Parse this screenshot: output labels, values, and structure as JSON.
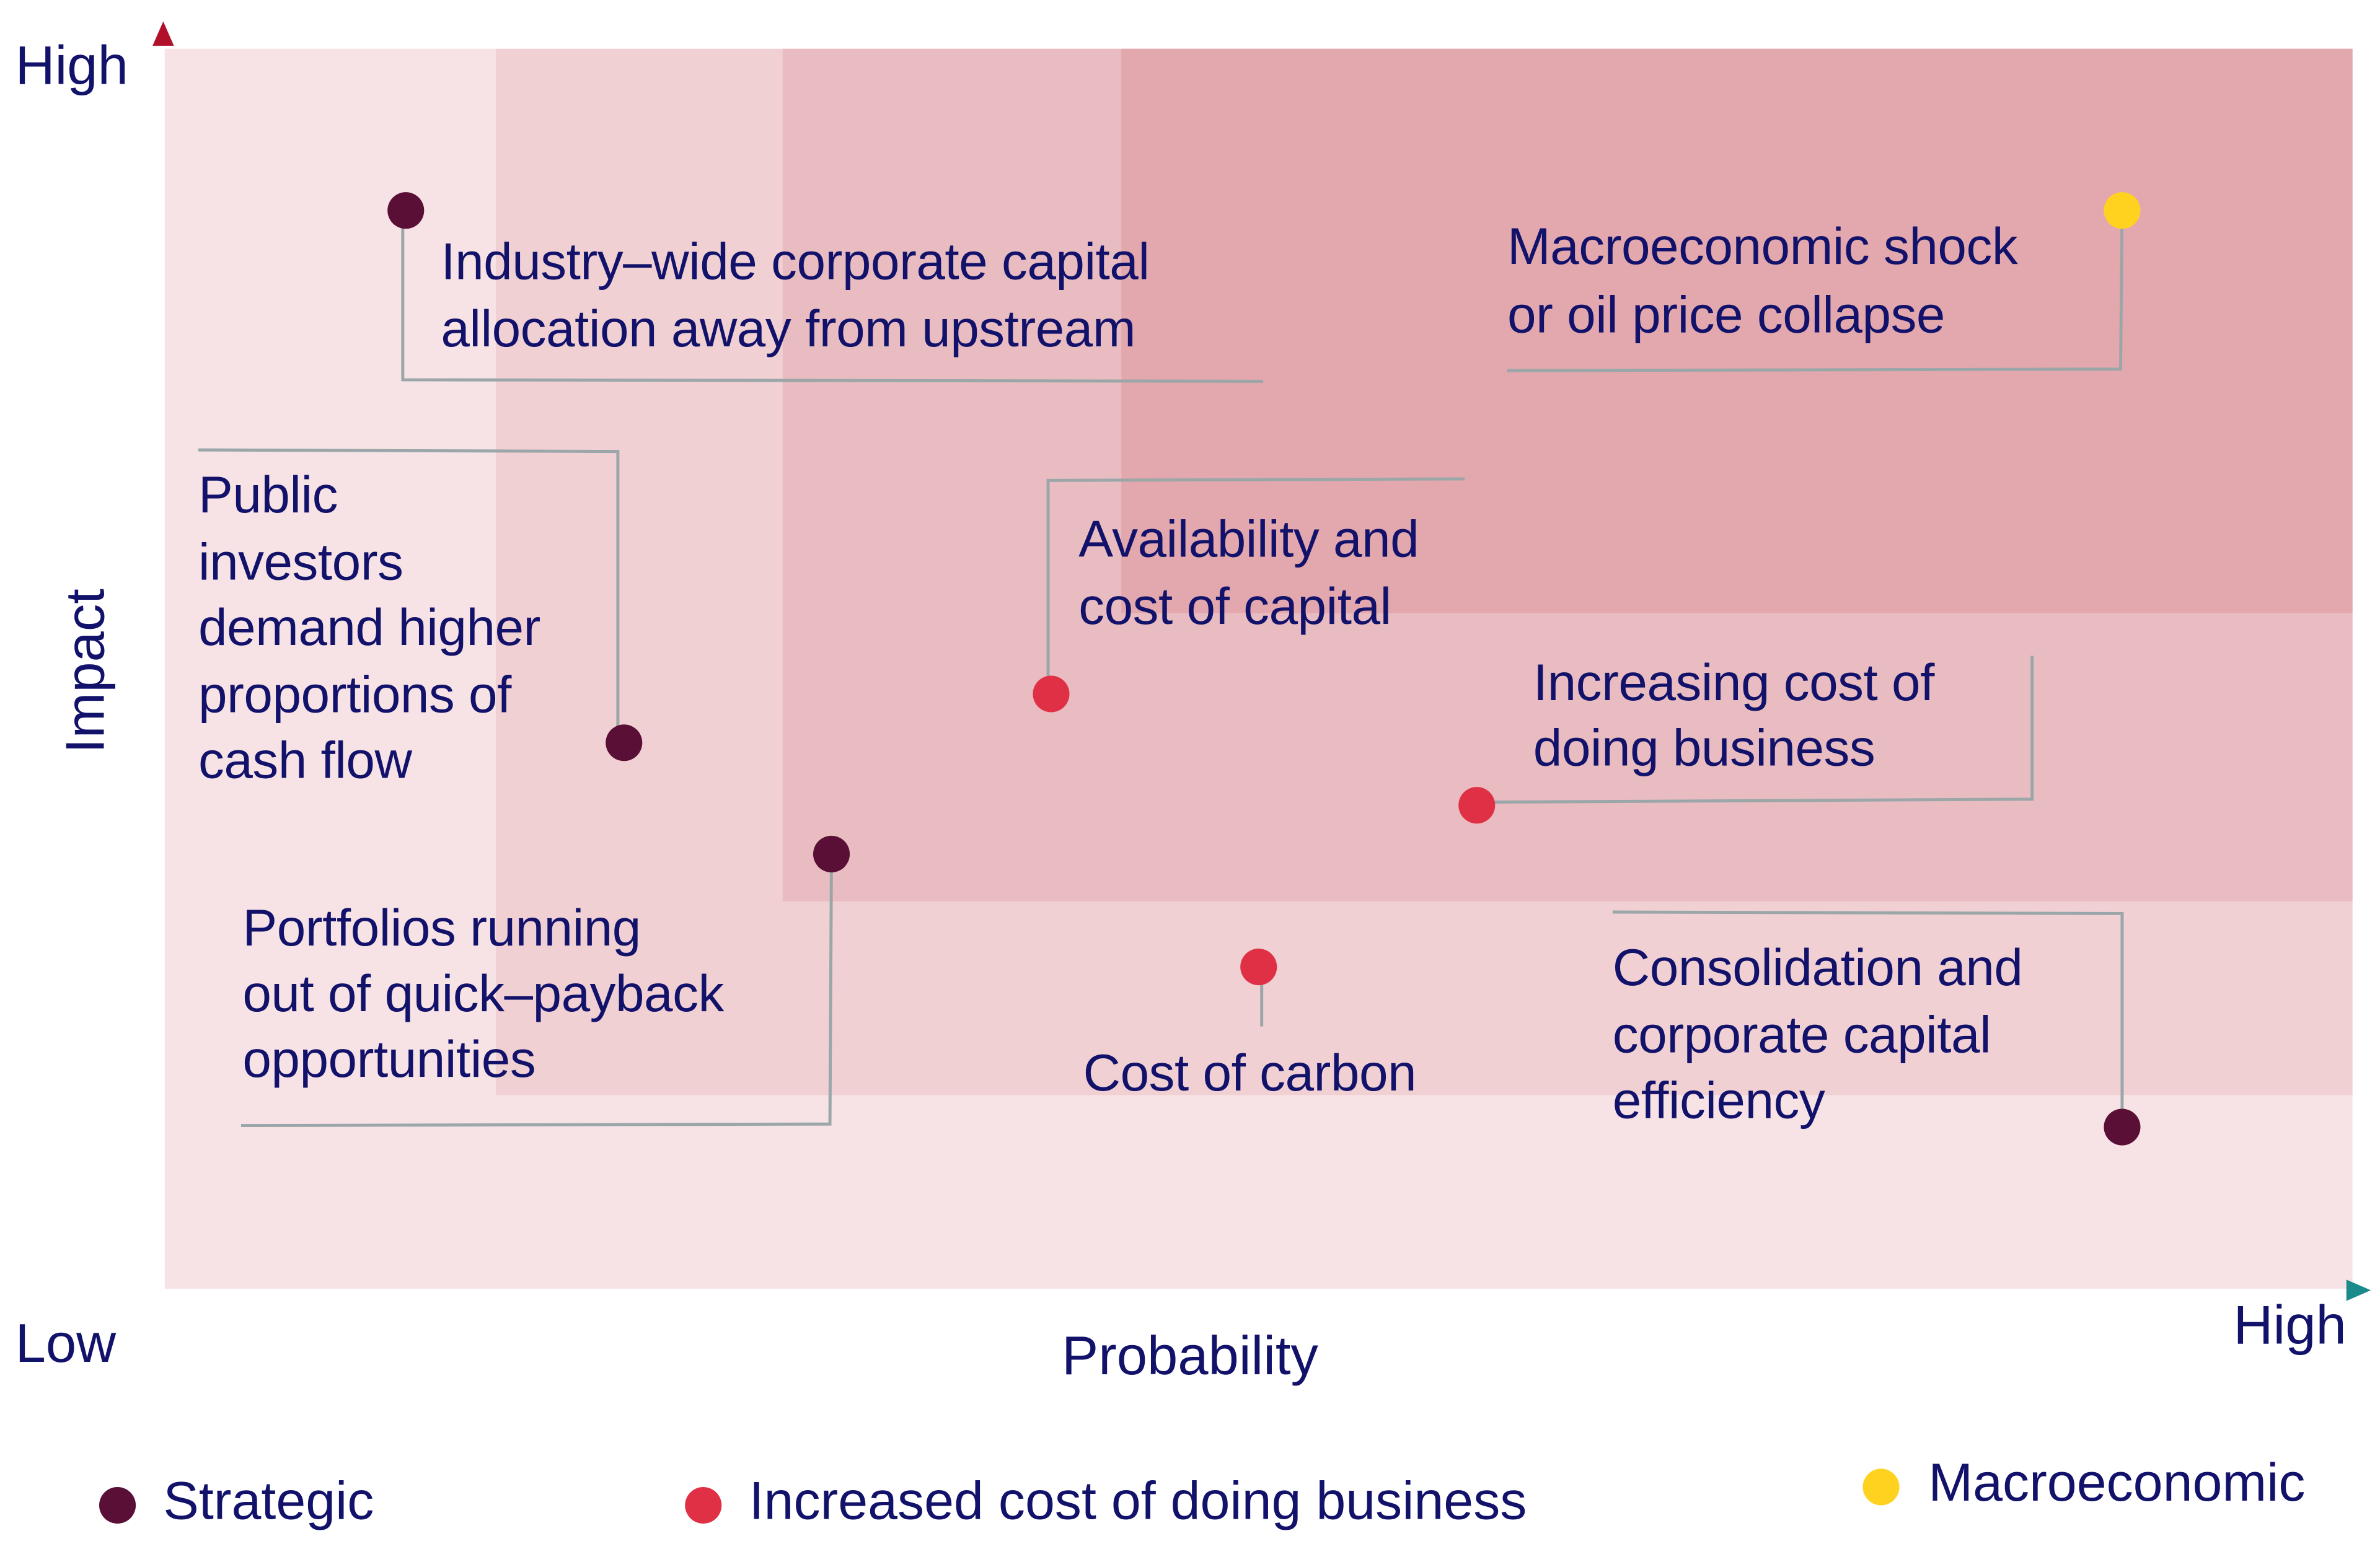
{
  "chart_data": {
    "type": "scatter",
    "xlabel": "Probability",
    "ylabel": "Impact",
    "axis_low_label": "Low",
    "y_high_label": "High",
    "x_high_label": "High",
    "xlim": [
      0,
      1
    ],
    "ylim": [
      0,
      1
    ],
    "grid": false,
    "legend_placement": "bottom",
    "colors": {
      "axis_y": "#b0102a",
      "axis_x": "#1a8a8a",
      "text": "#12126b",
      "zone_low": "#f7e3e5",
      "zone_mid_low": "#f0d0d3",
      "zone_mid_high": "#e8bcc0",
      "zone_high": "#e2a8ad"
    },
    "legend": [
      {
        "name": "Strategic",
        "color": "#5a0f36"
      },
      {
        "name": "Increased cost of doing business",
        "color": "#e03046"
      },
      {
        "name": "Macroeconomic",
        "color": "#ffd21f"
      }
    ],
    "points": [
      {
        "category": 0,
        "probability": 0.11,
        "impact": 0.87,
        "label_lines": [
          "Industry–wide corporate capital",
          "allocation away from upstream"
        ]
      },
      {
        "category": 0,
        "probability": 0.21,
        "impact": 0.44,
        "label_lines": [
          "Public",
          "investors",
          "demand higher",
          "proportions of",
          "cash flow"
        ]
      },
      {
        "category": 0,
        "probability": 0.305,
        "impact": 0.35,
        "label_lines": [
          "Portfolios running",
          "out of quick–payback",
          "opportunities"
        ]
      },
      {
        "category": 1,
        "probability": 0.405,
        "impact": 0.48,
        "label_lines": [
          "Availability and",
          "cost of capital"
        ]
      },
      {
        "category": 1,
        "probability": 0.6,
        "impact": 0.39,
        "label_lines": [
          "Increasing cost of",
          "doing business"
        ]
      },
      {
        "category": 1,
        "probability": 0.5,
        "impact": 0.26,
        "label_lines": [
          "Cost of carbon"
        ]
      },
      {
        "category": 0,
        "probability": 0.895,
        "impact": 0.13,
        "label_lines": [
          "Consolidation and",
          "corporate capital",
          "efficiency"
        ]
      },
      {
        "category": 2,
        "probability": 0.895,
        "impact": 0.87,
        "label_lines": [
          "Macroeconomic shock",
          "or oil price collapse"
        ]
      }
    ]
  }
}
